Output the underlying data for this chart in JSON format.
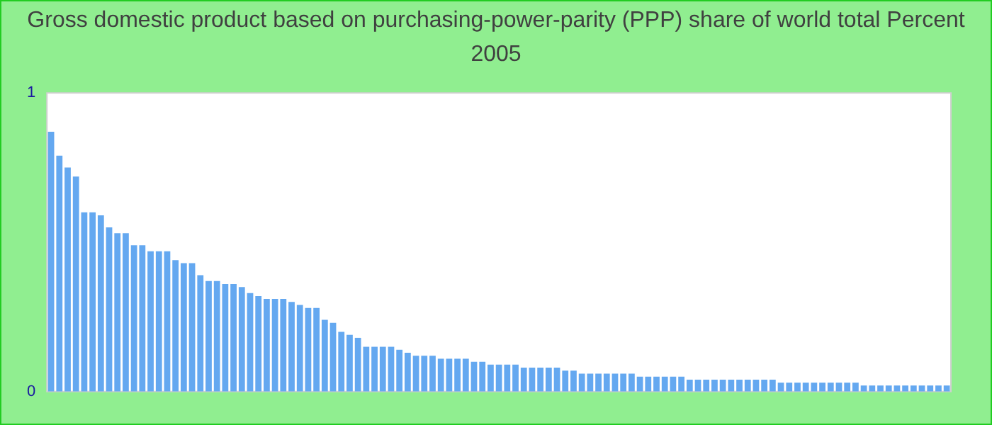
{
  "chart_data": {
    "type": "bar",
    "title": "Gross domestic product based on purchasing-power-parity (PPP) share of world total  Percent 2005",
    "categories": [
      null,
      null,
      null,
      null,
      null,
      null,
      null,
      null,
      null,
      null,
      null,
      null,
      null,
      null,
      null,
      null,
      null,
      null,
      null,
      null,
      null,
      null,
      null,
      null,
      null,
      null,
      null,
      null,
      null,
      null,
      null,
      null,
      null,
      null,
      null,
      null,
      null,
      null,
      null,
      null,
      null,
      null,
      null,
      null,
      null,
      null,
      null,
      null,
      null,
      null,
      null,
      null,
      null,
      null,
      null,
      null,
      null,
      null,
      null,
      null,
      null,
      null,
      null,
      null,
      null,
      null,
      null,
      null,
      null,
      null,
      null,
      null,
      null,
      null,
      null,
      null,
      null,
      null,
      null,
      null,
      null,
      null,
      null,
      null,
      null,
      null,
      null,
      null,
      null,
      null,
      null,
      null,
      null,
      null,
      null,
      null,
      null,
      null,
      null,
      null,
      null,
      null,
      null,
      null,
      null,
      null,
      null,
      null,
      null
    ],
    "values": [
      0.87,
      0.79,
      0.75,
      0.72,
      0.6,
      0.6,
      0.59,
      0.55,
      0.53,
      0.53,
      0.49,
      0.49,
      0.47,
      0.47,
      0.47,
      0.44,
      0.43,
      0.43,
      0.39,
      0.37,
      0.37,
      0.36,
      0.36,
      0.35,
      0.33,
      0.32,
      0.31,
      0.31,
      0.31,
      0.3,
      0.29,
      0.28,
      0.28,
      0.24,
      0.23,
      0.2,
      0.19,
      0.18,
      0.15,
      0.15,
      0.15,
      0.15,
      0.14,
      0.13,
      0.12,
      0.12,
      0.12,
      0.11,
      0.11,
      0.11,
      0.11,
      0.1,
      0.1,
      0.09,
      0.09,
      0.09,
      0.09,
      0.08,
      0.08,
      0.08,
      0.08,
      0.08,
      0.07,
      0.07,
      0.06,
      0.06,
      0.06,
      0.06,
      0.06,
      0.06,
      0.06,
      0.05,
      0.05,
      0.05,
      0.05,
      0.05,
      0.05,
      0.04,
      0.04,
      0.04,
      0.04,
      0.04,
      0.04,
      0.04,
      0.04,
      0.04,
      0.04,
      0.04,
      0.03,
      0.03,
      0.03,
      0.03,
      0.03,
      0.03,
      0.03,
      0.03,
      0.03,
      0.03,
      0.02,
      0.02,
      0.02,
      0.02,
      0.02,
      0.02,
      0.02,
      0.02,
      0.02,
      0.02,
      0.02
    ],
    "color": "#64a8f0",
    "ylim": [
      0,
      1
    ],
    "yticks": [
      0,
      1
    ],
    "grid": false,
    "legend": false
  }
}
